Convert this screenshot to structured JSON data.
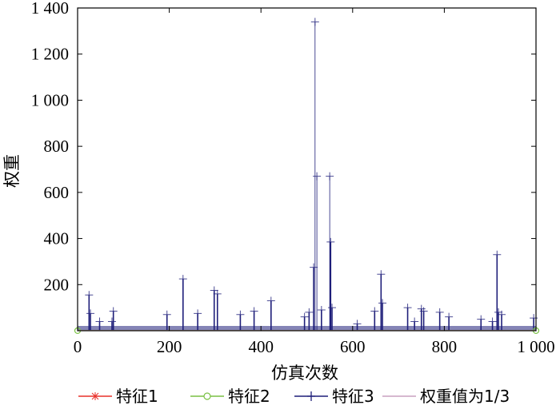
{
  "chart_data": {
    "type": "line",
    "title": "",
    "xlabel": "仿真次数",
    "ylabel": "权重",
    "xlim": [
      0,
      1000
    ],
    "ylim": [
      0,
      1400
    ],
    "xticks": [
      0,
      200,
      400,
      600,
      800,
      1000
    ],
    "xtick_labels": [
      "0",
      "200",
      "400",
      "600",
      "800",
      "1 000"
    ],
    "yticks": [
      200,
      400,
      600,
      800,
      1000,
      1200,
      1400
    ],
    "ytick_labels": [
      "200",
      "400",
      "600",
      "800",
      "1 000",
      "1 200",
      "1 400"
    ],
    "grid": false,
    "legend_position": "bottom",
    "series": [
      {
        "name": "特征1",
        "color": "#e8302a",
        "marker": "asterisk",
        "x": [
          0,
          1000
        ],
        "values": [
          0.33,
          0.33
        ]
      },
      {
        "name": "特征2",
        "color": "#7ac143",
        "marker": "circle",
        "x": [
          0,
          1000
        ],
        "values": [
          0.33,
          0.33
        ]
      },
      {
        "name": "特征3",
        "color": "#1f1f7a",
        "marker": "plus",
        "x": [
          25,
          28,
          48,
          75,
          78,
          195,
          230,
          262,
          298,
          305,
          355,
          385,
          422,
          495,
          505,
          515,
          518,
          522,
          532,
          550,
          552,
          555,
          610,
          648,
          662,
          665,
          720,
          735,
          750,
          755,
          790,
          810,
          880,
          905,
          915,
          918,
          925,
          995
        ],
        "values": [
          155,
          75,
          40,
          40,
          85,
          70,
          225,
          75,
          175,
          160,
          70,
          85,
          130,
          60,
          80,
          275,
          1340,
          670,
          90,
          670,
          385,
          100,
          30,
          85,
          245,
          120,
          100,
          40,
          95,
          85,
          80,
          60,
          50,
          40,
          330,
          80,
          70,
          55
        ]
      },
      {
        "name": "权重值为1/3",
        "color": "#c9a0c0",
        "marker": "none",
        "x": [
          0,
          1000
        ],
        "values": [
          0.33,
          0.33
        ]
      }
    ]
  }
}
